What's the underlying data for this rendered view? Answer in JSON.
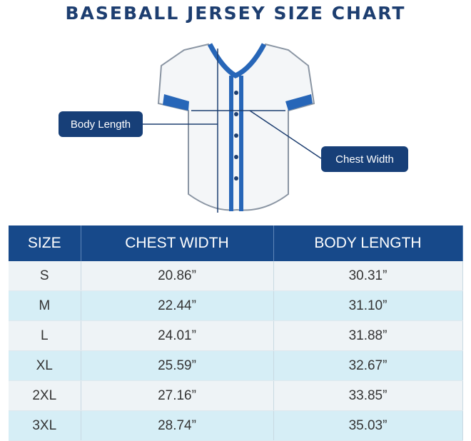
{
  "header": {
    "title": "BASEBALL JERSEY SIZE CHART"
  },
  "diagram": {
    "labels": [
      "Body Length",
      "Chest Width"
    ]
  },
  "table": {
    "columns": [
      "SIZE",
      "CHEST WIDTH",
      "BODY LENGTH"
    ],
    "rows": [
      [
        "S",
        "20.86”",
        "30.31”"
      ],
      [
        "M",
        "22.44”",
        "31.10”"
      ],
      [
        "L",
        "24.01”",
        "31.88”"
      ],
      [
        "XL",
        "25.59”",
        "32.67”"
      ],
      [
        "2XL",
        "27.16”",
        "33.85”"
      ],
      [
        "3XL",
        "28.74”",
        "35.03”"
      ]
    ]
  }
}
